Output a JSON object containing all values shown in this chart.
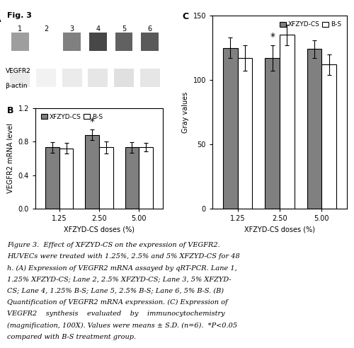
{
  "panel_B": {
    "categories": [
      "1.25",
      "2.50",
      "5.00"
    ],
    "xfzyd_cs_values": [
      0.73,
      0.88,
      0.73
    ],
    "bs_values": [
      0.72,
      0.73,
      0.73
    ],
    "xfzyd_cs_errors": [
      0.06,
      0.06,
      0.06
    ],
    "bs_errors": [
      0.06,
      0.07,
      0.05
    ],
    "ylabel": "VEGFR2 mRNA level",
    "xlabel": "XFZYD-CS doses (%)",
    "ylim": [
      0.0,
      1.2
    ],
    "yticks": [
      0.0,
      0.4,
      0.8,
      1.2
    ],
    "star_index": 1,
    "xfzyd_color": "#808080",
    "bs_color": "#ffffff",
    "legend_label_xfzyd": "XFZYD-CS",
    "legend_label_bs": "B-S",
    "panel_label": "B"
  },
  "panel_C": {
    "categories": [
      "1.25",
      "2.50",
      "5.00"
    ],
    "xfzyd_cs_values": [
      125,
      117,
      124
    ],
    "bs_values": [
      117,
      135,
      112
    ],
    "xfzyd_cs_errors": [
      8,
      10,
      7
    ],
    "bs_errors": [
      10,
      8,
      8
    ],
    "ylabel": "Gray values",
    "xlabel": "XFZYD-CS doses (%)",
    "ylim": [
      0,
      150
    ],
    "yticks": [
      0,
      50,
      100,
      150
    ],
    "star_index": 1,
    "xfzyd_color": "#808080",
    "bs_color": "#ffffff",
    "legend_label_xfzyd": "XFZYD-CS",
    "legend_label_bs": "B-S",
    "panel_label": "C"
  },
  "panel_A": {
    "label": "A",
    "lane_numbers": [
      "1",
      "2",
      "3",
      "4",
      "5",
      "6"
    ],
    "row_labels": [
      "VEGFR2",
      "β-actin"
    ],
    "vegfr2_intensities": [
      0.62,
      1.0,
      0.5,
      0.28,
      0.38,
      0.35
    ],
    "bactin_intensities": [
      0.92,
      0.95,
      0.92,
      0.9,
      0.88,
      0.9
    ]
  },
  "figure_label": "Fig. 3",
  "caption_lines": [
    "Figure 3.  Effect of XFZYD-CS on the expression of VEGFR2.",
    "HUVECs were treated with 1.25%, 2.5% and 5% XFZYD-CS for 48",
    "h. (A) Expression of VEGFR2 mRNA assayed by qRT-PCR. Lane 1,",
    "1.25% XFZYD-CS; Lane 2, 2.5% XFZYD-CS; Lane 3, 5% XFZYD-",
    "CS; Lane 4, 1.25% B-S; Lane 5, 2.5% B-S; Lane 6, 5% B-S. (B)",
    "Quantification of VEGFR2 mRNA expression. (C) Expression of",
    "VEGFR2    synthesis    evaluated    by    immunocytochemistry",
    "(magnification, 100X). Values were means ± S.D. (n=6).  *P<0.05",
    "compared with B-S treatment group."
  ],
  "bar_width": 0.35,
  "edgecolor": "#000000",
  "fig_width": 5.0,
  "fig_height": 4.92
}
